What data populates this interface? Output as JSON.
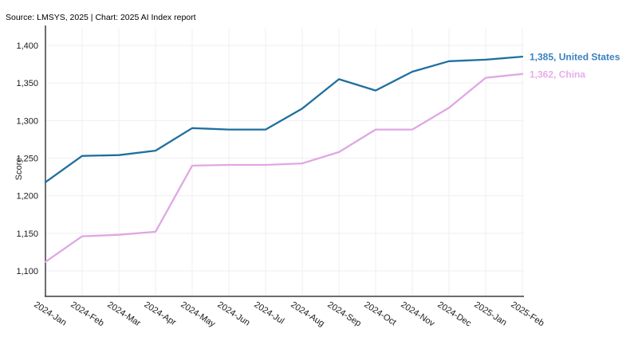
{
  "source": {
    "text": "Source: LMSYS, 2025 | Chart: 2025 AI Index report"
  },
  "chart_data": {
    "type": "line",
    "title": "",
    "xlabel": "",
    "ylabel": "Score",
    "ylim": [
      1066,
      1425
    ],
    "y_ticks": [
      1100,
      1150,
      1200,
      1250,
      1300,
      1350,
      1400
    ],
    "grid": true,
    "legend_position": "end-of-line",
    "categories": [
      "2024-Jan",
      "2024-Feb",
      "2024-Mar",
      "2024-Apr",
      "2024-May",
      "2024-Jun",
      "2024-Jul",
      "2024-Aug",
      "2024-Sep",
      "2024-Oct",
      "2024-Nov",
      "2024-Dec",
      "2025-Jan",
      "2025-Feb"
    ],
    "series": [
      {
        "name": "United States",
        "end_label": "1,385, United States",
        "line_color": "#1f6f9e",
        "label_color": "#3a80bf",
        "values": [
          1218,
          1253,
          1254,
          1260,
          1290,
          1288,
          1288,
          1316,
          1355,
          1340,
          1365,
          1379,
          1381,
          1385
        ]
      },
      {
        "name": "China",
        "end_label": "1,362, China",
        "line_color": "#dfa7e4",
        "label_color": "#e6aeea",
        "values": [
          1112,
          1146,
          1148,
          1152,
          1240,
          1241,
          1241,
          1243,
          1258,
          1288,
          1288,
          1317,
          1357,
          1362
        ]
      }
    ],
    "colors": {
      "grid": "#f1eef2",
      "axis": "#3d3d3d",
      "tick_text": "#1a1a1a"
    }
  }
}
